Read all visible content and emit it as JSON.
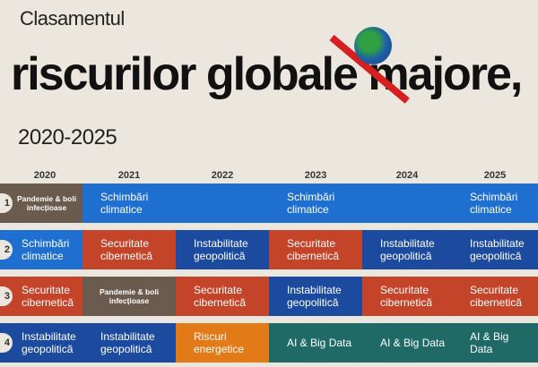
{
  "title": {
    "line1": "Clasamentul",
    "line2": "riscurilor globale majore,",
    "line3": "2020-2025"
  },
  "logo": {
    "icon": "globe-with-downward-arrow-icon"
  },
  "years": [
    "2020",
    "2021",
    "2022",
    "2023",
    "2024",
    "2025"
  ],
  "ranks": [
    "1",
    "2",
    "3",
    "4"
  ],
  "colors": {
    "climate": "#1f6fd0",
    "geopolitics": "#1c4a9e",
    "cyber": "#c4442a",
    "pandemic": "#6b5a4e",
    "energy": "#e27a18",
    "ai": "#1f6a66",
    "background": "#ebe7de"
  },
  "grid": [
    [
      {
        "label": "Pandemie & boli infecțioase",
        "type": "pandemic"
      },
      {
        "label": "Schimbări climatice",
        "type": "climate"
      },
      {
        "label": "",
        "type": "climate"
      },
      {
        "label": "Schimbări climatice",
        "type": "climate"
      },
      {
        "label": "",
        "type": "climate"
      },
      {
        "label": "Schimbări climatice",
        "type": "climate"
      }
    ],
    [
      {
        "label": "Schimbări climatice",
        "type": "climate"
      },
      {
        "label": "Securitate cibernetică",
        "type": "cyber"
      },
      {
        "label": "Instabilitate geopolitică",
        "type": "geopolitics"
      },
      {
        "label": "Securitate cibernetică",
        "type": "cyber"
      },
      {
        "label": "Instabilitate geopolitică",
        "type": "geopolitics"
      },
      {
        "label": "Instabilitate geopolitică",
        "type": "geopolitics"
      }
    ],
    [
      {
        "label": "Securitate cibernetică",
        "type": "cyber"
      },
      {
        "label": "Pandemie & boli infecțioase",
        "type": "pandemic"
      },
      {
        "label": "Securitate cibernetică",
        "type": "cyber"
      },
      {
        "label": "Instabilitate geopolitică",
        "type": "geopolitics"
      },
      {
        "label": "Securitate cibernetică",
        "type": "cyber"
      },
      {
        "label": "Securitate cibernetică",
        "type": "cyber"
      }
    ],
    [
      {
        "label": "Instabilitate geopolitică",
        "type": "geopolitics"
      },
      {
        "label": "Instabilitate geopolitică",
        "type": "geopolitics"
      },
      {
        "label": "Riscuri energetice",
        "type": "energy"
      },
      {
        "label": "AI & Big Data",
        "type": "ai"
      },
      {
        "label": "AI & Big Data",
        "type": "ai"
      },
      {
        "label": "AI & Big Data",
        "type": "ai"
      }
    ]
  ]
}
